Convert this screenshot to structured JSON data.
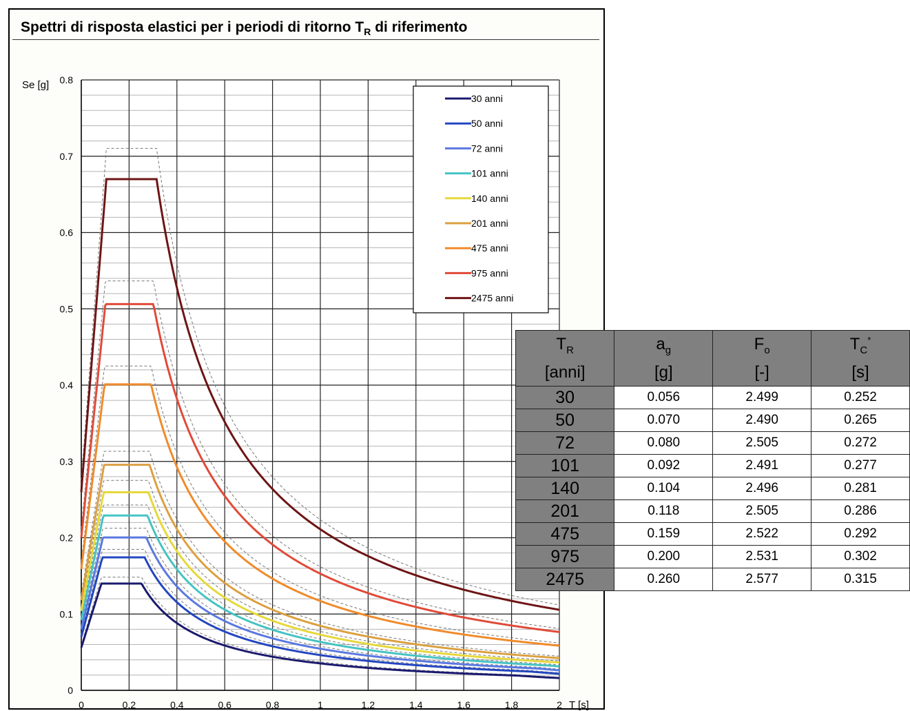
{
  "title": {
    "text": "Spettri di risposta elastici per i periodi di ritorno T",
    "sub": "R",
    "suffix": " di riferimento"
  },
  "chart_data": {
    "type": "line",
    "title": "Spettri di risposta elastici per i periodi di ritorno TR di riferimento",
    "ylabel": "Se [g]",
    "xlabel": "T [s]",
    "xlim": [
      0,
      2
    ],
    "ylim": [
      0,
      0.8
    ],
    "xticks": [
      "0",
      "0.2",
      "0.4",
      "0.6",
      "0.8",
      "1",
      "1.2",
      "1.4",
      "1.6",
      "1.8",
      "2"
    ],
    "yticks": [
      "0",
      "0.1",
      "0.2",
      "0.3",
      "0.4",
      "0.5",
      "0.6",
      "0.7",
      "0.8"
    ],
    "grid": true,
    "legend_position": "top-right",
    "series": [
      {
        "name": "30 anni",
        "color": "#1a1a6e",
        "ag": 0.056,
        "F0": 2.499,
        "Tc": 0.252
      },
      {
        "name": "50 anni",
        "color": "#2346c0",
        "ag": 0.07,
        "F0": 2.49,
        "Tc": 0.265
      },
      {
        "name": "72 anni",
        "color": "#5a78e0",
        "ag": 0.08,
        "F0": 2.505,
        "Tc": 0.272
      },
      {
        "name": "101 anni",
        "color": "#45c3c3",
        "ag": 0.092,
        "F0": 2.491,
        "Tc": 0.277
      },
      {
        "name": "140 anni",
        "color": "#e6d83a",
        "ag": 0.104,
        "F0": 2.496,
        "Tc": 0.281
      },
      {
        "name": "201 anni",
        "color": "#dca040",
        "ag": 0.118,
        "F0": 2.505,
        "Tc": 0.286
      },
      {
        "name": "475 anni",
        "color": "#f08a2a",
        "ag": 0.159,
        "F0": 2.522,
        "Tc": 0.292
      },
      {
        "name": "975 anni",
        "color": "#e04a38",
        "ag": 0.2,
        "F0": 2.531,
        "Tc": 0.302
      },
      {
        "name": "2475 anni",
        "color": "#6e1414",
        "ag": 0.26,
        "F0": 2.577,
        "Tc": 0.315
      }
    ]
  },
  "table": {
    "headers": [
      {
        "main": "T",
        "sub": "R",
        "sup": "",
        "unit": "[anni]"
      },
      {
        "main": "a",
        "sub": "g",
        "sup": "",
        "unit": "[g]"
      },
      {
        "main": "F",
        "sub": "o",
        "sup": "",
        "unit": "[-]"
      },
      {
        "main": "T",
        "sub": "C",
        "sup": "*",
        "unit": "[s]"
      }
    ],
    "rows": [
      [
        "30",
        "0.056",
        "2.499",
        "0.252"
      ],
      [
        "50",
        "0.070",
        "2.490",
        "0.265"
      ],
      [
        "72",
        "0.080",
        "2.505",
        "0.272"
      ],
      [
        "101",
        "0.092",
        "2.491",
        "0.277"
      ],
      [
        "140",
        "0.104",
        "2.496",
        "0.281"
      ],
      [
        "201",
        "0.118",
        "2.505",
        "0.286"
      ],
      [
        "475",
        "0.159",
        "2.522",
        "0.292"
      ],
      [
        "975",
        "0.200",
        "2.531",
        "0.302"
      ],
      [
        "2475",
        "0.260",
        "2.577",
        "0.315"
      ]
    ]
  }
}
